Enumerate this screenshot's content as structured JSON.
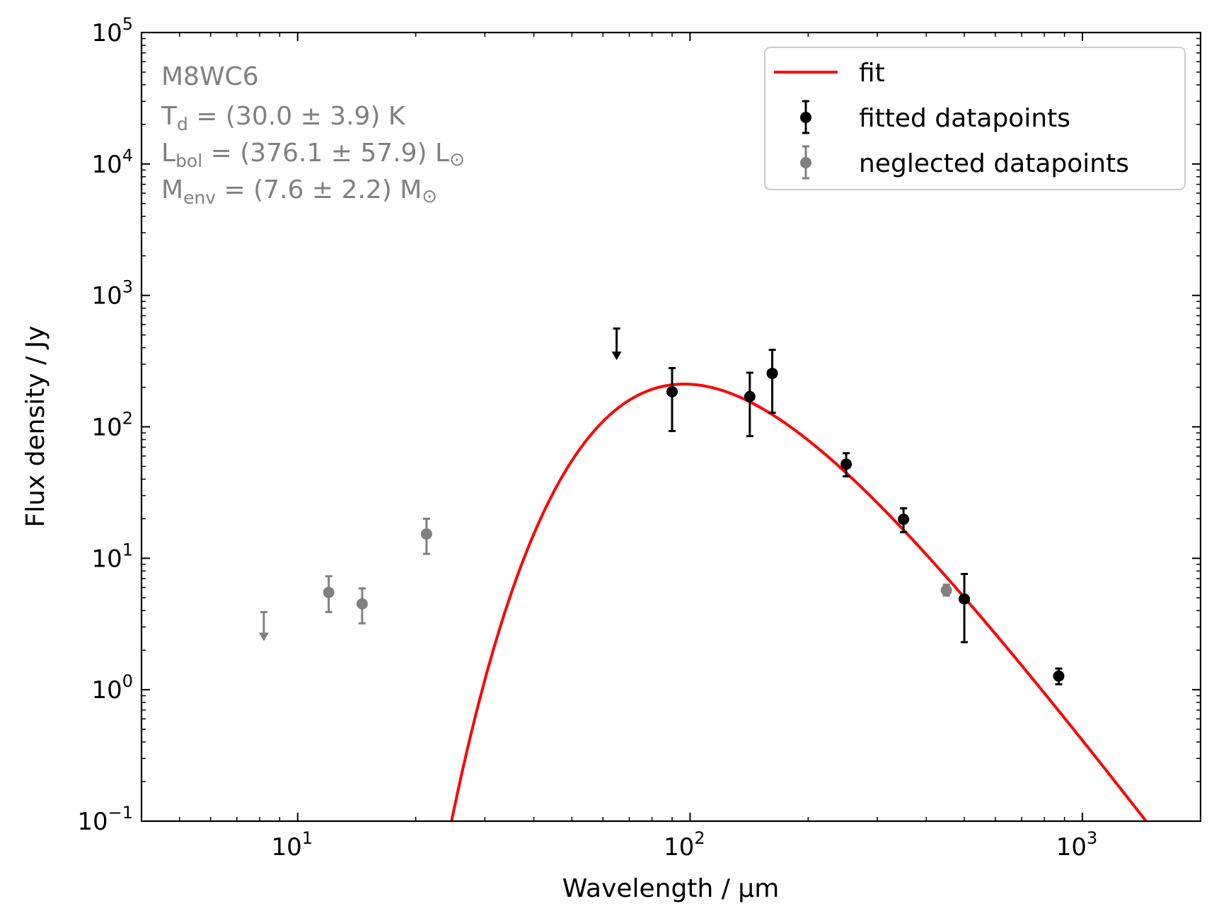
{
  "chart_data": {
    "type": "scatter",
    "x_scale": "log",
    "y_scale": "log",
    "xlim": [
      4.0,
      2000
    ],
    "ylim": [
      0.1,
      100000
    ],
    "xlabel": "Wavelength / μm",
    "ylabel": "Flux density / Jy",
    "x_ticks": [
      {
        "value": 10,
        "base": "10",
        "exp": "1"
      },
      {
        "value": 100,
        "base": "10",
        "exp": "2"
      },
      {
        "value": 1000,
        "base": "10",
        "exp": "3"
      }
    ],
    "y_ticks": [
      {
        "value": 0.1,
        "base": "10",
        "exp": "−1"
      },
      {
        "value": 1,
        "base": "10",
        "exp": "0"
      },
      {
        "value": 10,
        "base": "10",
        "exp": "1"
      },
      {
        "value": 100,
        "base": "10",
        "exp": "2"
      },
      {
        "value": 1000,
        "base": "10",
        "exp": "3"
      },
      {
        "value": 10000,
        "base": "10",
        "exp": "4"
      },
      {
        "value": 100000,
        "base": "10",
        "exp": "5"
      }
    ],
    "annotation": {
      "source": "M8WC6",
      "td": {
        "sym": "T",
        "sub": "d",
        "text": " = (30.0 ± 3.9) K"
      },
      "lbol": {
        "sym": "L",
        "sub": "bol",
        "text": " = (376.1 ± 57.9) L",
        "unit_symbol": "⊙"
      },
      "menv": {
        "sym": "M",
        "sub": "env",
        "text": " = (7.6 ± 2.2) M",
        "unit_symbol": "⊙"
      }
    },
    "legend": {
      "location": "top-right",
      "entries": [
        "fit",
        "fitted datapoints",
        "neglected datapoints"
      ]
    },
    "colors": {
      "fit": "#ff0000",
      "fitted": "#000000",
      "neglected": "#808080",
      "annotation": "#808080"
    },
    "fit": {
      "name": "fit",
      "model": "modified blackbody",
      "temperature_K": 30.0,
      "beta": 2.0,
      "peak_wavelength_um": 102,
      "peak_flux_Jy": 210
    },
    "fitted_points": [
      {
        "x": 90,
        "y": 185,
        "yerr_low": 93,
        "yerr_high": 280
      },
      {
        "x": 142,
        "y": 170,
        "yerr_low": 85,
        "yerr_high": 258
      },
      {
        "x": 162,
        "y": 255,
        "yerr_low": 128,
        "yerr_high": 385
      },
      {
        "x": 250,
        "y": 52,
        "yerr_low": 42,
        "yerr_high": 63
      },
      {
        "x": 350,
        "y": 19.8,
        "yerr_low": 15.8,
        "yerr_high": 24
      },
      {
        "x": 500,
        "y": 4.9,
        "yerr_low": 2.3,
        "yerr_high": 7.6
      },
      {
        "x": 870,
        "y": 1.27,
        "yerr_low": 1.1,
        "yerr_high": 1.45
      }
    ],
    "fitted_upper_limits": [
      {
        "x": 65,
        "y_top": 560,
        "y_arrow": 330
      }
    ],
    "neglected_points": [
      {
        "x": 12,
        "y": 5.5,
        "yerr_low": 3.9,
        "yerr_high": 7.3
      },
      {
        "x": 14.6,
        "y": 4.5,
        "yerr_low": 3.2,
        "yerr_high": 5.9
      },
      {
        "x": 21.3,
        "y": 15.3,
        "yerr_low": 10.8,
        "yerr_high": 20
      },
      {
        "x": 450,
        "y": 5.7,
        "yerr_low": 5.2,
        "yerr_high": 6.3
      }
    ],
    "neglected_upper_limits": [
      {
        "x": 8.2,
        "y_top": 3.9,
        "y_arrow": 2.4
      }
    ]
  }
}
